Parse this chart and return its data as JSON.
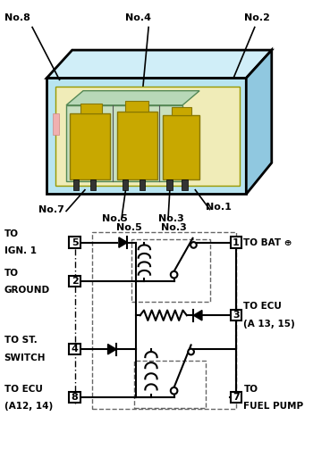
{
  "bg_color": "#ffffff",
  "box_outer_color": "#b8e4f0",
  "box_inner_color": "#f0ecb8",
  "box_inner_green": "#c8dfc0",
  "relay_fill": "#c8a800",
  "line_color": "#000000",
  "dashed_color": "#666666",
  "pink_rect": "#f0b0b0",
  "node_labels": [
    "No.8",
    "No.4",
    "No.2",
    "No.7",
    "No.5",
    "No.3",
    "No.1"
  ],
  "terminal_labels": [
    "5",
    "1",
    "2",
    "3",
    "4",
    "8",
    "7"
  ],
  "left_labels": [
    [
      "TO",
      "IGN. 1"
    ],
    [
      "TO",
      "GROUND"
    ],
    [
      "TO ST.",
      "SWITCH"
    ],
    [
      "TO ECU",
      "(A12, 14)"
    ]
  ],
  "right_labels": [
    "TO BAT ⊕",
    "TO ECU",
    "(A 13, 15)",
    "TO",
    "FUEL PUMP"
  ]
}
